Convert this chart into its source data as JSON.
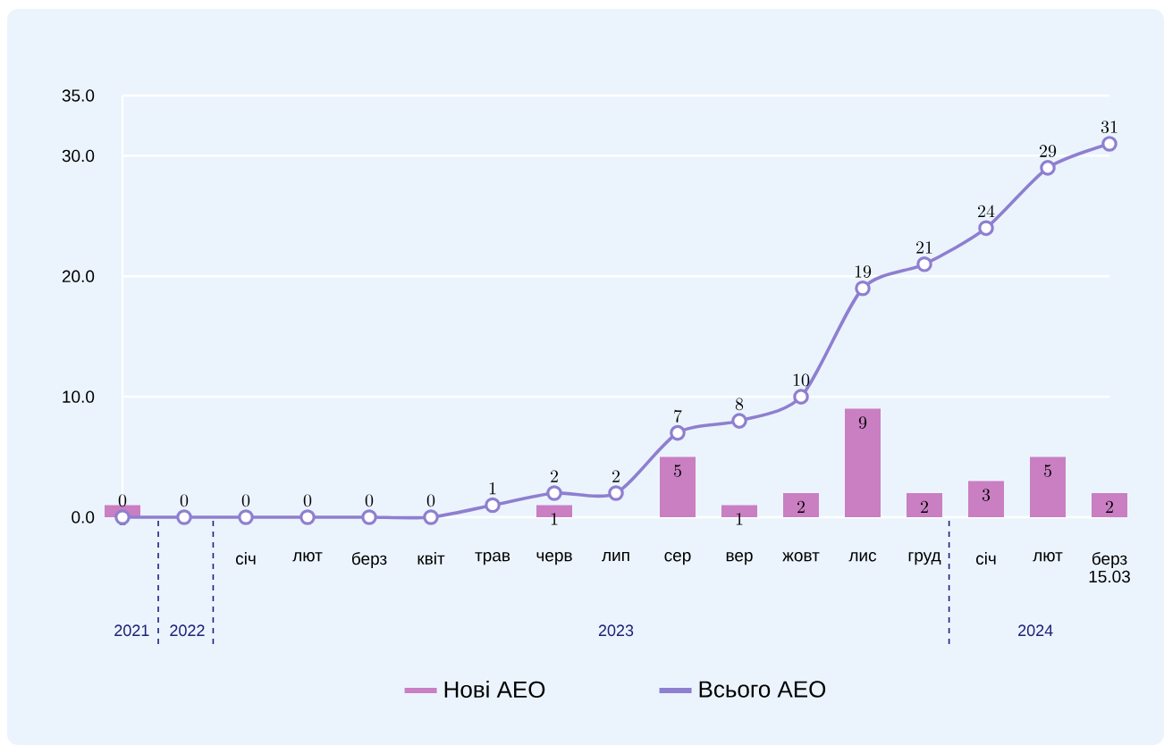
{
  "chart_data": {
    "type": "bar",
    "categories": [
      null,
      null,
      "січ",
      "лют",
      "берз",
      "квіт",
      "трав",
      "черв",
      "лип",
      "сер",
      "вер",
      "жовт",
      "лис",
      "груд",
      "січ",
      "лют",
      "берз 15.03"
    ],
    "series": [
      {
        "name": "Нові АЕО",
        "color": "#c97fc2",
        "values": [
          1,
          null,
          null,
          null,
          null,
          null,
          null,
          1,
          null,
          5,
          1,
          2,
          9,
          2,
          3,
          5,
          2
        ]
      },
      {
        "name": "Всього АЕО",
        "type": "line",
        "color": "#8e7fd0",
        "values": [
          0,
          0,
          0,
          0,
          0,
          0,
          1,
          2,
          2,
          7,
          8,
          10,
          19,
          21,
          24,
          29,
          31
        ]
      }
    ],
    "ylim": [
      0,
      35
    ],
    "yticks": [
      {
        "value": 0,
        "label": "0.0"
      },
      {
        "value": 10,
        "label": "10.0"
      },
      {
        "value": 20,
        "label": "20.0"
      },
      {
        "value": 30,
        "label": "30.0"
      },
      {
        "value": 35,
        "label": "35.0"
      }
    ],
    "grid": "y",
    "legend": "bottom",
    "marker": "circle",
    "data_labels": true,
    "annotations": [
      "2021",
      "2022",
      "2023",
      "2024"
    ]
  }
}
